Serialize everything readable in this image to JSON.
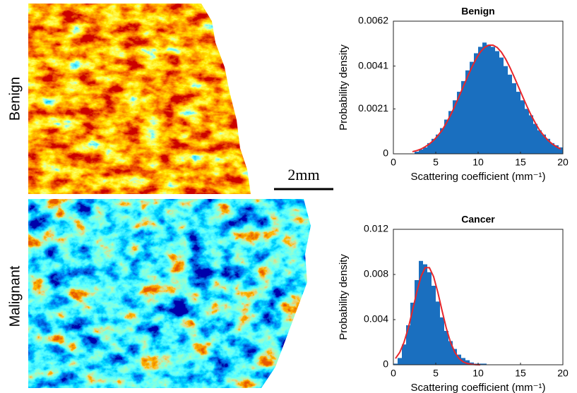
{
  "labels": {
    "benign": "Benign",
    "malignant": "Malignant",
    "scale_bar": "2mm"
  },
  "chart_data": [
    {
      "type": "histogram",
      "title": "Benign",
      "x_label": "Scattering coefficient (mm⁻¹)",
      "y_label": "Probability density",
      "bins": [
        0,
        0.5,
        1,
        1.5,
        2,
        2.5,
        3,
        3.5,
        4,
        4.5,
        5,
        5.5,
        6,
        6.5,
        7,
        7.5,
        8,
        8.5,
        9,
        9.5,
        10,
        10.5,
        11,
        11.5,
        12,
        12.5,
        13,
        13.5,
        14,
        14.5,
        15,
        15.5,
        16,
        16.5,
        17,
        17.5,
        18,
        18.5,
        19,
        19.5,
        20
      ],
      "counts": [
        0,
        0,
        0,
        0,
        0,
        0.0001,
        0.0002,
        0.0003,
        0.0005,
        0.0007,
        0.0009,
        0.0012,
        0.0016,
        0.002,
        0.0025,
        0.0029,
        0.0034,
        0.0039,
        0.0043,
        0.0047,
        0.005,
        0.0052,
        0.0051,
        0.005,
        0.0048,
        0.0045,
        0.0041,
        0.0037,
        0.0033,
        0.0029,
        0.0025,
        0.0021,
        0.0018,
        0.0014,
        0.0011,
        0.0009,
        0.0007,
        0.0005,
        0.0004,
        0.0003
      ],
      "color": "#1a6fbf",
      "fit": {
        "color": "#e8262b",
        "x": [
          2.25,
          2.75,
          3.25,
          3.75,
          4.25,
          4.75,
          5.25,
          5.75,
          6.25,
          6.75,
          7.25,
          7.75,
          8.25,
          8.75,
          9.25,
          9.75,
          10.25,
          10.75,
          11.25,
          11.75,
          12.25,
          12.75,
          13.25,
          13.75,
          14.25,
          14.75,
          15.25,
          15.75,
          16.25,
          16.75,
          17.25,
          17.75,
          18.25,
          18.75,
          19.25,
          19.75
        ],
        "values": [
          0.0001,
          0.00015,
          0.00022,
          0.00033,
          0.00046,
          0.00063,
          0.00085,
          0.0011,
          0.00144,
          0.00181,
          0.00223,
          0.00268,
          0.00314,
          0.0036,
          0.00404,
          0.00443,
          0.00475,
          0.00497,
          0.00508,
          0.00508,
          0.00497,
          0.00475,
          0.00443,
          0.00404,
          0.0036,
          0.00314,
          0.00268,
          0.00223,
          0.00181,
          0.00144,
          0.0011,
          0.00085,
          0.00063,
          0.00046,
          0.00033,
          0.00022
        ]
      },
      "xlim": [
        0,
        20
      ],
      "ylim": [
        0,
        0.0062
      ],
      "xticks": [
        0,
        5,
        10,
        15,
        20
      ],
      "yticks": [
        0,
        0.0021,
        0.0041,
        0.0062
      ]
    },
    {
      "type": "histogram",
      "title": "Cancer",
      "x_label": "Scattering coefficient (mm⁻¹)",
      "y_label": "Probability density",
      "bins": [
        0,
        0.5,
        1,
        1.5,
        2,
        2.5,
        3,
        3.5,
        4,
        4.5,
        5,
        5.5,
        6,
        6.5,
        7,
        7.5,
        8,
        8.5,
        9,
        9.5,
        10,
        10.5,
        11,
        11.5,
        12,
        12.5,
        13,
        13.5,
        14,
        14.5,
        15,
        15.5,
        16,
        16.5,
        17,
        17.5,
        18,
        18.5,
        19,
        19.5,
        20
      ],
      "counts": [
        0.0001,
        0.0006,
        0.0018,
        0.0035,
        0.0055,
        0.0075,
        0.0092,
        0.0089,
        0.0082,
        0.007,
        0.0056,
        0.0042,
        0.003,
        0.0021,
        0.0014,
        0.0009,
        0.0006,
        0.0004,
        0.0002,
        0.0001,
        0.0001,
        0.0001,
        0,
        0,
        0,
        0,
        0,
        0,
        0,
        0,
        0,
        0,
        0,
        0,
        0,
        0,
        0,
        0,
        0,
        0
      ],
      "color": "#1a6fbf",
      "fit": {
        "color": "#e8262b",
        "x": [
          0.25,
          0.75,
          1.25,
          1.75,
          2.25,
          2.75,
          3.25,
          3.75,
          4.25,
          4.75,
          5.25,
          5.75,
          6.25,
          6.75,
          7.25,
          7.75,
          8.25,
          8.75,
          9.25,
          9.75,
          10.25
        ],
        "values": [
          0.00056,
          0.0011,
          0.00198,
          0.00323,
          0.00478,
          0.00641,
          0.0078,
          0.0086,
          0.0086,
          0.0078,
          0.00641,
          0.00478,
          0.00323,
          0.00198,
          0.0011,
          0.00056,
          0.00025,
          0.00011,
          4e-05,
          1e-05,
          0
        ]
      },
      "xlim": [
        0,
        20
      ],
      "ylim": [
        0,
        0.012
      ],
      "xticks": [
        0,
        5,
        10,
        15,
        20
      ],
      "yticks": [
        0,
        0.004,
        0.008,
        0.012
      ]
    }
  ]
}
